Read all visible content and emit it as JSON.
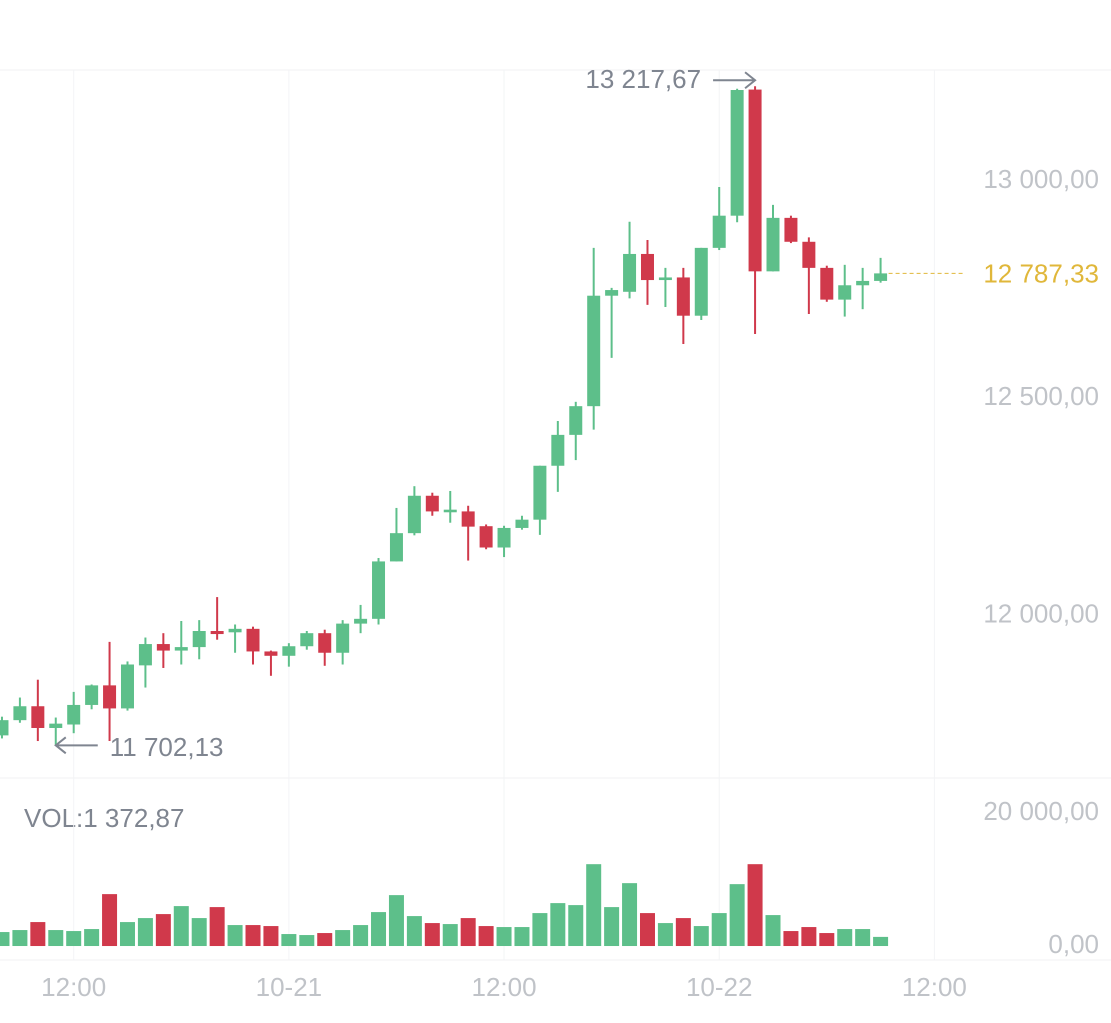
{
  "chart_data": {
    "type": "candlestick",
    "open": [
      11725,
      11760,
      11792,
      11742,
      11750,
      11795,
      11840,
      11787,
      11886,
      11935,
      11920,
      11928,
      11965,
      11962,
      11970,
      11918,
      11908,
      11930,
      11960,
      11915,
      11982,
      11993,
      12125,
      12190,
      12276,
      12238,
      12240,
      12206,
      12157,
      12202,
      12221,
      12345,
      12416,
      12482,
      12736,
      12745,
      12832,
      12772,
      12778,
      12690,
      12846,
      12920,
      13210,
      12792,
      12915,
      12860,
      12800,
      12727,
      12760,
      12770
    ],
    "high": [
      11768,
      11812,
      11853,
      11766,
      11825,
      11842,
      11940,
      11895,
      11950,
      11960,
      11988,
      11990,
      12043,
      11980,
      11975,
      11920,
      11937,
      11965,
      11968,
      11990,
      12025,
      12133,
      12248,
      12298,
      12283,
      12287,
      12253,
      12210,
      12207,
      12230,
      12345,
      12448,
      12492,
      12846,
      12754,
      12906,
      12864,
      12800,
      12800,
      12846,
      12986,
      13212,
      13217.67,
      12945,
      12920,
      12870,
      12805,
      12807,
      12800,
      12823
    ],
    "low": [
      11718,
      11754,
      11712,
      11702.13,
      11730,
      11785,
      11712,
      11782,
      11835,
      11880,
      11888,
      11900,
      11945,
      11915,
      11888,
      11862,
      11883,
      11922,
      11885,
      11888,
      11960,
      11980,
      12125,
      12185,
      12230,
      12214,
      12127,
      12153,
      12135,
      12198,
      12186,
      12285,
      12358,
      12428,
      12593,
      12730,
      12715,
      12710,
      12625,
      12680,
      12841,
      12905,
      12648,
      12792,
      12857,
      12694,
      12722,
      12688,
      12705,
      12766
    ],
    "close": [
      11760,
      11792,
      11742,
      11752,
      11795,
      11840,
      11787,
      11888,
      11935,
      11920,
      11928,
      11965,
      11958,
      11970,
      11918,
      11908,
      11930,
      11960,
      11915,
      11982,
      11993,
      12125,
      12190,
      12276,
      12240,
      12244,
      12205,
      12157,
      12202,
      12221,
      12345,
      12416,
      12482,
      12736,
      12749,
      12832,
      12772,
      12778,
      12690,
      12846,
      12920,
      13209,
      12792,
      12915,
      12860,
      12800,
      12727,
      12760,
      12770,
      12787.33
    ],
    "volume": [
      2100,
      2400,
      3600,
      2400,
      2250,
      2550,
      7800,
      3600,
      4200,
      4800,
      6000,
      4200,
      5850,
      3150,
      3150,
      3000,
      1800,
      1650,
      1950,
      2400,
      3150,
      5100,
      7650,
      4500,
      3450,
      3300,
      4200,
      3000,
      2850,
      2850,
      4950,
      6450,
      6150,
      12300,
      5850,
      9450,
      4950,
      3450,
      4200,
      3000,
      4950,
      9300,
      12300,
      4650,
      2250,
      2850,
      1950,
      2550,
      2550,
      1372.87
    ],
    "up_color": "#5dbf8a",
    "down_color": "#d0394b",
    "xlim": [
      -0.11,
      61.85
    ],
    "xticks": [
      {
        "value": 4,
        "label": "12:00"
      },
      {
        "value": 16,
        "label": "10-21"
      },
      {
        "value": 28,
        "label": "12:00"
      },
      {
        "value": 40,
        "label": "10-22"
      },
      {
        "value": 52,
        "label": "12:00"
      }
    ],
    "ylim": [
      11627,
      13255
    ],
    "yticks": [
      {
        "value": 12000,
        "label": "12 000,00"
      },
      {
        "value": 12500,
        "label": "12 500,00"
      },
      {
        "value": 13000,
        "label": "13 000,00"
      }
    ],
    "y2lim": [
      -2100,
      24950
    ],
    "y2ticks": [
      {
        "value": 0,
        "label": "0,00"
      },
      {
        "value": 20000,
        "label": "20 000,00"
      }
    ],
    "volume_label": "VOL:1 372,87",
    "max_marker": {
      "value": 13217.67,
      "label": "13 217,67"
    },
    "min_marker": {
      "value": 11702.13,
      "label": "11 702,13"
    },
    "last_price": {
      "value": 12787.33,
      "label": "12 787,33",
      "color": "#e0b73a"
    }
  }
}
